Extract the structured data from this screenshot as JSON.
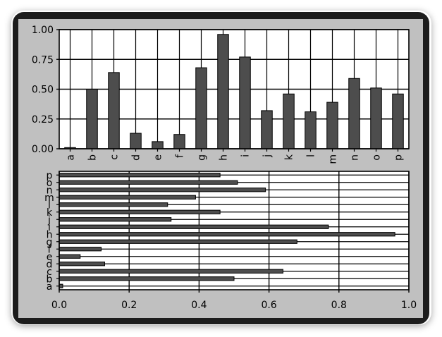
{
  "chart_data": [
    {
      "type": "bar",
      "orientation": "vertical",
      "categories": [
        "a",
        "b",
        "c",
        "d",
        "e",
        "f",
        "g",
        "h",
        "i",
        "j",
        "k",
        "l",
        "m",
        "n",
        "o",
        "p"
      ],
      "values": [
        0.01,
        0.5,
        0.64,
        0.13,
        0.06,
        0.12,
        0.68,
        0.96,
        0.77,
        0.32,
        0.46,
        0.31,
        0.39,
        0.59,
        0.51,
        0.46
      ],
      "title": "",
      "xlabel": "",
      "ylabel": "",
      "ylim": [
        0,
        1.0
      ],
      "yticks": [
        "0.00",
        "0.25",
        "0.50",
        "0.75",
        "1.00"
      ],
      "grid": true,
      "bar_color": "#4d4d4d",
      "background": "#ffffff"
    },
    {
      "type": "bar",
      "orientation": "horizontal",
      "categories": [
        "a",
        "b",
        "c",
        "d",
        "e",
        "f",
        "g",
        "h",
        "i",
        "j",
        "k",
        "l",
        "m",
        "n",
        "o",
        "p"
      ],
      "values": [
        0.01,
        0.5,
        0.64,
        0.13,
        0.06,
        0.12,
        0.68,
        0.96,
        0.77,
        0.32,
        0.46,
        0.31,
        0.39,
        0.59,
        0.51,
        0.46
      ],
      "title": "",
      "xlabel": "",
      "ylabel": "",
      "xlim": [
        0,
        1.0
      ],
      "xticks": [
        "0.0",
        "0.2",
        "0.4",
        "0.6",
        "0.8",
        "1.0"
      ],
      "grid": true,
      "bar_color": "#4d4d4d",
      "background": "#ffffff"
    }
  ],
  "colors": {
    "frame": "#1d1d1d",
    "figure_background": "#c0c0c0"
  }
}
